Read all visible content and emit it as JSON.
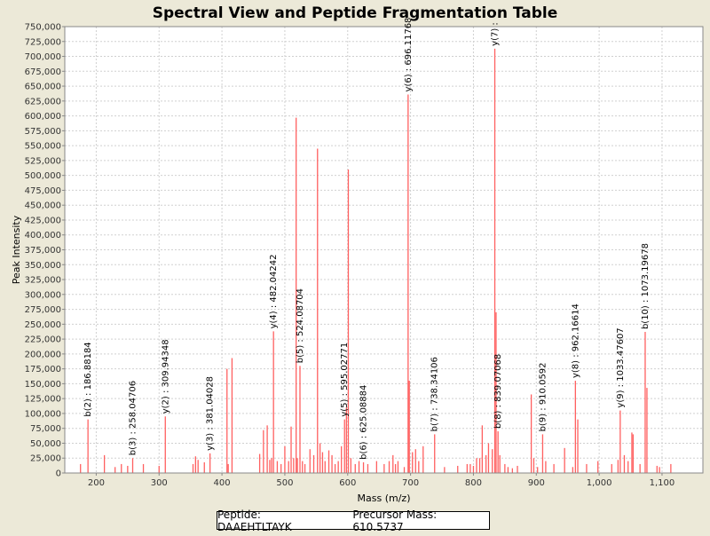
{
  "chart_data": {
    "type": "bar",
    "title": "Spectral View and Peptide Fragmentation Table",
    "xlabel": "Mass (m/z)",
    "ylabel": "Peak Intensity",
    "xlim": [
      150,
      1165
    ],
    "ylim": [
      0,
      750000
    ],
    "xticks": [
      200,
      300,
      400,
      500,
      600,
      700,
      800,
      900,
      1000,
      1100
    ],
    "xtick_labels": [
      "200",
      "300",
      "400",
      "500",
      "600",
      "700",
      "800",
      "900",
      "1,000",
      "1,100"
    ],
    "yticks": [
      0,
      25000,
      50000,
      75000,
      100000,
      125000,
      150000,
      175000,
      200000,
      225000,
      250000,
      275000,
      300000,
      325000,
      350000,
      375000,
      400000,
      425000,
      450000,
      475000,
      500000,
      525000,
      550000,
      575000,
      600000,
      625000,
      650000,
      675000,
      700000,
      725000,
      750000
    ],
    "ytick_labels": [
      "0",
      "25,000",
      "50,000",
      "75,000",
      "100,000",
      "125,000",
      "150,000",
      "175,000",
      "200,000",
      "225,000",
      "250,000",
      "275,000",
      "300,000",
      "325,000",
      "350,000",
      "375,000",
      "400,000",
      "425,000",
      "450,000",
      "475,000",
      "500,000",
      "525,000",
      "550,000",
      "575,000",
      "600,000",
      "625,000",
      "650,000",
      "675,000",
      "700,000",
      "725,000",
      "750,000"
    ],
    "grid": true,
    "peak_color": "#ff6060",
    "peaks": [
      [
        175,
        15000
      ],
      [
        186.9,
        90000
      ],
      [
        213,
        30000
      ],
      [
        230,
        10000
      ],
      [
        240,
        15000
      ],
      [
        250,
        12000
      ],
      [
        258.0,
        25000
      ],
      [
        275,
        15000
      ],
      [
        300,
        12000
      ],
      [
        309.9,
        95000
      ],
      [
        354,
        15000
      ],
      [
        358,
        28000
      ],
      [
        362,
        22000
      ],
      [
        372,
        18000
      ],
      [
        381.0,
        33000
      ],
      [
        408,
        175000
      ],
      [
        410,
        15000
      ],
      [
        416,
        193000
      ],
      [
        460,
        32000
      ],
      [
        466,
        72000
      ],
      [
        472,
        80000
      ],
      [
        476,
        22000
      ],
      [
        479,
        25000
      ],
      [
        482.0,
        238000
      ],
      [
        488,
        20000
      ],
      [
        494,
        15000
      ],
      [
        500,
        45000
      ],
      [
        506,
        20000
      ],
      [
        510,
        78000
      ],
      [
        514,
        25000
      ],
      [
        518,
        597000
      ],
      [
        520,
        25000
      ],
      [
        524.1,
        180000
      ],
      [
        528,
        20000
      ],
      [
        532,
        15000
      ],
      [
        540,
        40000
      ],
      [
        546,
        30000
      ],
      [
        552,
        545000
      ],
      [
        556,
        50000
      ],
      [
        560,
        35000
      ],
      [
        564,
        20000
      ],
      [
        570,
        38000
      ],
      [
        575,
        30000
      ],
      [
        580,
        15000
      ],
      [
        585,
        20000
      ],
      [
        590,
        45000
      ],
      [
        595.0,
        90000
      ],
      [
        598,
        110000
      ],
      [
        601,
        510000
      ],
      [
        605,
        25000
      ],
      [
        612,
        15000
      ],
      [
        618,
        20000
      ],
      [
        625.1,
        18000
      ],
      [
        632,
        15000
      ],
      [
        646,
        20000
      ],
      [
        658,
        15000
      ],
      [
        666,
        20000
      ],
      [
        672,
        30000
      ],
      [
        676,
        15000
      ],
      [
        680,
        20000
      ],
      [
        690,
        10000
      ],
      [
        696.1,
        636000
      ],
      [
        698,
        155000
      ],
      [
        703,
        35000
      ],
      [
        708,
        40000
      ],
      [
        713,
        20000
      ],
      [
        720,
        45000
      ],
      [
        738.3,
        65000
      ],
      [
        754,
        10000
      ],
      [
        775,
        12000
      ],
      [
        790,
        15000
      ],
      [
        795,
        15000
      ],
      [
        800,
        12000
      ],
      [
        805,
        25000
      ],
      [
        810,
        25000
      ],
      [
        814,
        80000
      ],
      [
        820,
        30000
      ],
      [
        824,
        50000
      ],
      [
        830,
        40000
      ],
      [
        834,
        713000
      ],
      [
        836,
        270000
      ],
      [
        839.1,
        70000
      ],
      [
        842,
        30000
      ],
      [
        850,
        15000
      ],
      [
        855,
        10000
      ],
      [
        862,
        8000
      ],
      [
        870,
        12000
      ],
      [
        892,
        132000
      ],
      [
        896,
        25000
      ],
      [
        902,
        10000
      ],
      [
        910.1,
        65000
      ],
      [
        915,
        20000
      ],
      [
        928,
        15000
      ],
      [
        945,
        42000
      ],
      [
        958,
        10000
      ],
      [
        962.2,
        155000
      ],
      [
        966,
        90000
      ],
      [
        980,
        15000
      ],
      [
        998,
        20000
      ],
      [
        1020,
        15000
      ],
      [
        1030,
        22000
      ],
      [
        1033.5,
        105000
      ],
      [
        1040,
        30000
      ],
      [
        1046,
        20000
      ],
      [
        1052,
        68000
      ],
      [
        1054,
        65000
      ],
      [
        1065,
        15000
      ],
      [
        1073.2,
        237000
      ],
      [
        1076,
        143000
      ],
      [
        1092,
        12000
      ],
      [
        1096,
        10000
      ],
      [
        1114,
        15000
      ]
    ],
    "annotations": [
      {
        "x": 186.9,
        "y": 90000,
        "label": "b(2) : 186.88184"
      },
      {
        "x": 258.0,
        "y": 25000,
        "label": "b(3) : 258.04706"
      },
      {
        "x": 309.9,
        "y": 95000,
        "label": "y(2) : 309.94348"
      },
      {
        "x": 381.0,
        "y": 33000,
        "label": "y(3) : 381.04028"
      },
      {
        "x": 482.0,
        "y": 238000,
        "label": "y(4) : 482.04242"
      },
      {
        "x": 524.1,
        "y": 180000,
        "label": "b(5) : 524.08704"
      },
      {
        "x": 595.0,
        "y": 90000,
        "label": "y(5) : 595.02771"
      },
      {
        "x": 625.1,
        "y": 18000,
        "label": "b(6) : 625.08884"
      },
      {
        "x": 696.1,
        "y": 636000,
        "label": "y(6) : 696.11768"
      },
      {
        "x": 738.3,
        "y": 65000,
        "label": "b(7) : 738.34106"
      },
      {
        "x": 834,
        "y": 713000,
        "label": "y(7) :"
      },
      {
        "x": 839.1,
        "y": 70000,
        "label": "b(8) : 839.07068"
      },
      {
        "x": 910.1,
        "y": 65000,
        "label": "b(9) : 910.0592"
      },
      {
        "x": 962.2,
        "y": 155000,
        "label": "y(8) : 962.16614"
      },
      {
        "x": 1033.5,
        "y": 105000,
        "label": "y(9) : 1033.47607"
      },
      {
        "x": 1073.2,
        "y": 237000,
        "label": "b(10) : 1073.19678"
      }
    ]
  },
  "legend": {
    "peptide": "Peptide: DAAEHTLTAYK",
    "precursor": "Precursor Mass: 610.5737"
  }
}
